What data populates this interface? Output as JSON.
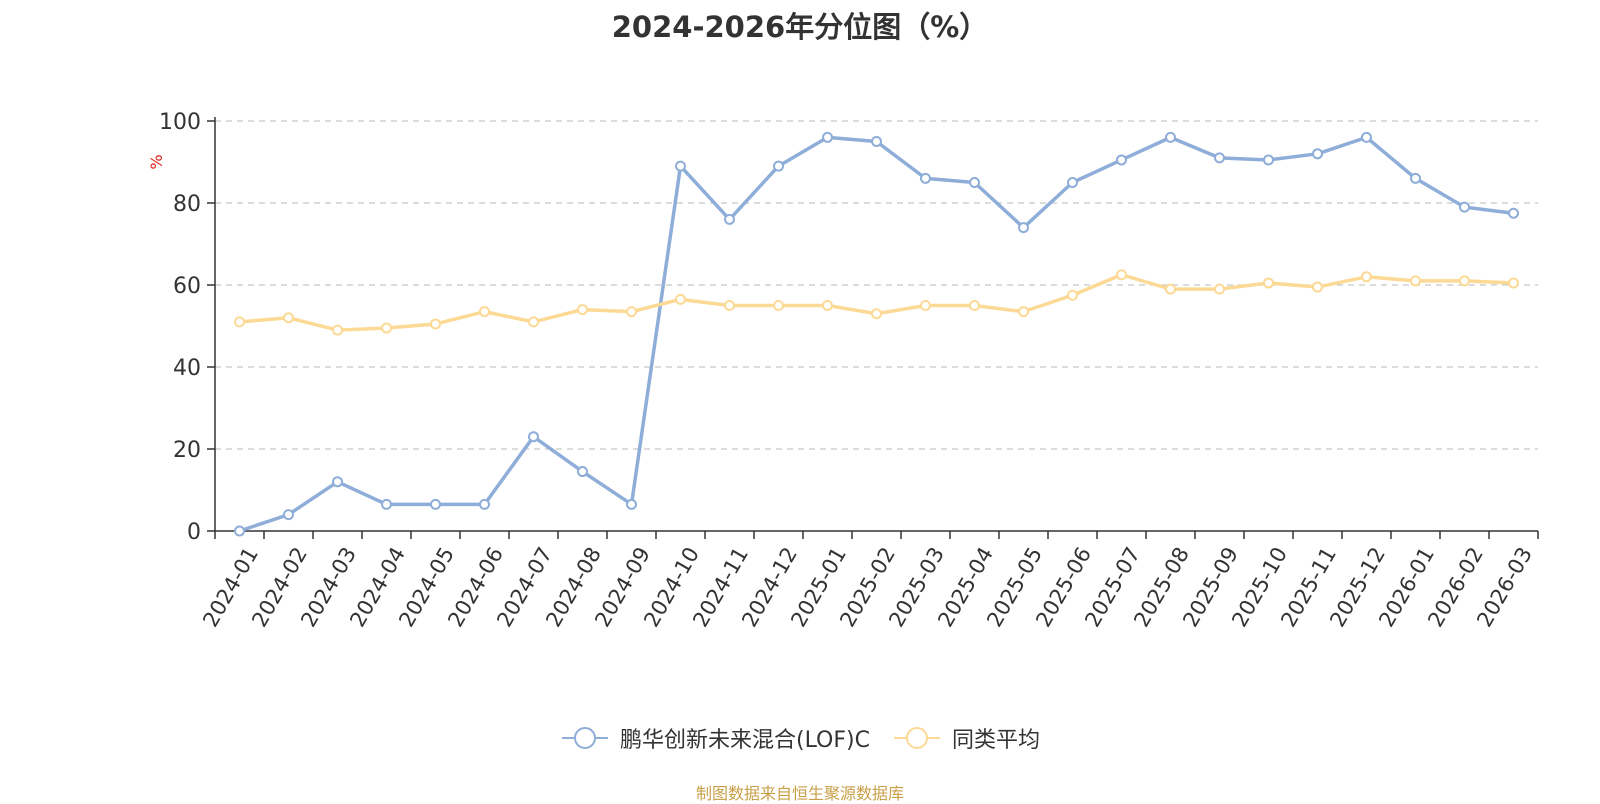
{
  "title": "2024-2026年分位图（%）",
  "source_note": "制图数据来自恒生聚源数据库",
  "chart_data": {
    "type": "line",
    "title": "2024-2026年分位图（%）",
    "ylabel": "%",
    "xlabel": "",
    "ylim": [
      0,
      100
    ],
    "yticks": [
      0,
      20,
      40,
      60,
      80,
      100
    ],
    "grid": true,
    "legend_position": "bottom",
    "x": [
      "2024-01",
      "2024-02",
      "2024-03",
      "2024-04",
      "2024-05",
      "2024-06",
      "2024-07",
      "2024-08",
      "2024-09",
      "2024-10",
      "2024-11",
      "2024-12",
      "2025-01",
      "2025-02",
      "2025-03",
      "2025-04",
      "2025-05",
      "2025-06",
      "2025-07",
      "2025-08",
      "2025-09",
      "2025-10",
      "2025-11",
      "2025-12",
      "2026-01",
      "2026-02",
      "2026-03"
    ],
    "series": [
      {
        "name": "鹏华创新未来混合(LOF)C",
        "color": "#8eadd8",
        "values": [
          0,
          4,
          12,
          6.5,
          6.5,
          6.5,
          23,
          14.5,
          6.5,
          89,
          76,
          89,
          96,
          95,
          86,
          85,
          74,
          85,
          90.5,
          96,
          91,
          90.5,
          92,
          96,
          86,
          79,
          77.5
        ]
      },
      {
        "name": "同类平均",
        "color": "#fcd994",
        "values": [
          51,
          52,
          49,
          49.5,
          50.5,
          53.5,
          51,
          54,
          53.5,
          56.5,
          55,
          55,
          55,
          53,
          55,
          55,
          53.5,
          57.5,
          62.5,
          59,
          59,
          60.5,
          59.5,
          62,
          61,
          61,
          60.5
        ]
      }
    ]
  }
}
